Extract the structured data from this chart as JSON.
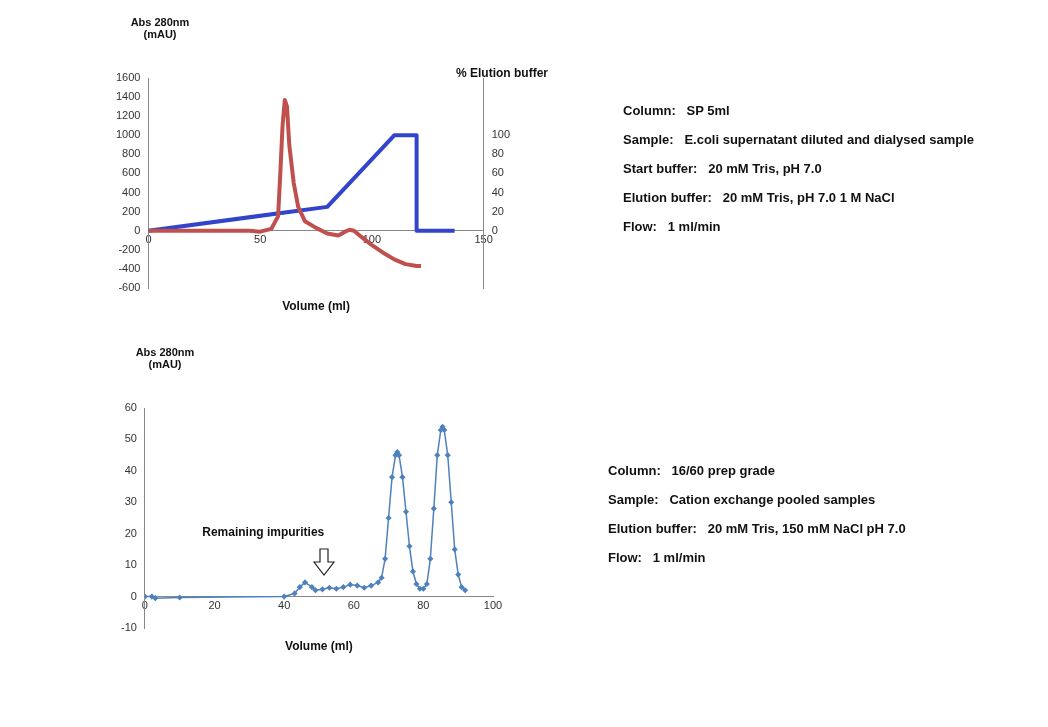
{
  "chart_data": [
    {
      "type": "line",
      "xlabel": "Volume (ml)",
      "ylabel": "Abs 280nm (mAU)",
      "y2label": "% Elution buffer",
      "xlim": [
        0,
        150
      ],
      "xticks": [
        0,
        50,
        100,
        150
      ],
      "ylim": [
        -600,
        1600
      ],
      "yticks": [
        -600,
        -400,
        -200,
        0,
        200,
        400,
        600,
        800,
        1000,
        1200,
        1400,
        1600
      ],
      "y2lim": [
        -60,
        160
      ],
      "y2ticks": [
        0,
        20,
        40,
        60,
        80,
        100
      ],
      "grid": false,
      "legend": false,
      "marker": "none",
      "series": [
        {
          "color": "#c0504d",
          "x": [
            0,
            20,
            45,
            50,
            55,
            58,
            59,
            60,
            61,
            62,
            63,
            65,
            67,
            70,
            75,
            80,
            85,
            88,
            90,
            92,
            95,
            100,
            105,
            110,
            115,
            120,
            122
          ],
          "values": [
            0,
            0,
            0,
            -10,
            20,
            150,
            600,
            1100,
            1370,
            1300,
            900,
            500,
            250,
            100,
            30,
            -30,
            -50,
            -10,
            10,
            0,
            -60,
            -150,
            -230,
            -300,
            -350,
            -370,
            -370
          ]
        },
        {
          "color": "#3344cc",
          "axis": "y2",
          "x": [
            0,
            80,
            110,
            120,
            120,
            137
          ],
          "values": [
            0,
            25,
            100,
            100,
            0,
            0
          ]
        }
      ]
    },
    {
      "type": "other",
      "annotations": [
        "Column:   SP 5ml",
        "Sample:   E.coli supernatant diluted and dialysed sample",
        "Start buffer:   20 mM Tris, pH 7.0",
        "Elution buffer:   20 mM Tris, pH 7.0 1 M NaCl",
        "Flow:   1 ml/min"
      ]
    },
    {
      "type": "line",
      "xlabel": "Volume (ml)",
      "ylabel": "Abs 280nm (mAU)",
      "xlim": [
        0,
        100
      ],
      "xticks": [
        0,
        20,
        40,
        60,
        80,
        100
      ],
      "ylim": [
        -10,
        60
      ],
      "yticks": [
        -10,
        0,
        10,
        20,
        30,
        40,
        50,
        60
      ],
      "grid": false,
      "legend": false,
      "marker": "diamond",
      "series": [
        {
          "color": "#4f81bd",
          "x": [
            0,
            2,
            3,
            10,
            40,
            43,
            44.5,
            46,
            48,
            49,
            51,
            53,
            55,
            57,
            59,
            61,
            63,
            65,
            67,
            68,
            69,
            70,
            71,
            72,
            72.5,
            73,
            74,
            75,
            76,
            77,
            78,
            79,
            80,
            81,
            82,
            83,
            84,
            85,
            85.5,
            86,
            87,
            88,
            89,
            90,
            91,
            92
          ],
          "values": [
            0,
            0,
            -0.5,
            -0.3,
            0,
            1,
            3,
            4.5,
            3,
            2,
            2.3,
            2.8,
            2.5,
            3,
            3.8,
            3.5,
            2.8,
            3.5,
            4.5,
            6,
            12,
            25,
            38,
            45,
            46,
            45,
            38,
            27,
            16,
            8,
            4,
            2.5,
            2.5,
            4,
            12,
            28,
            45,
            53,
            54,
            53,
            45,
            30,
            15,
            7,
            3,
            2
          ]
        }
      ],
      "annotations": [
        "Remaining impurities"
      ]
    },
    {
      "type": "other",
      "annotations": [
        "Column:   16/60 prep grade",
        "Sample:   Cation exchange pooled samples",
        "Elution buffer:   20 mM Tris, 150 mM NaCl pH 7.0",
        "Flow:   1 ml/min"
      ]
    }
  ]
}
